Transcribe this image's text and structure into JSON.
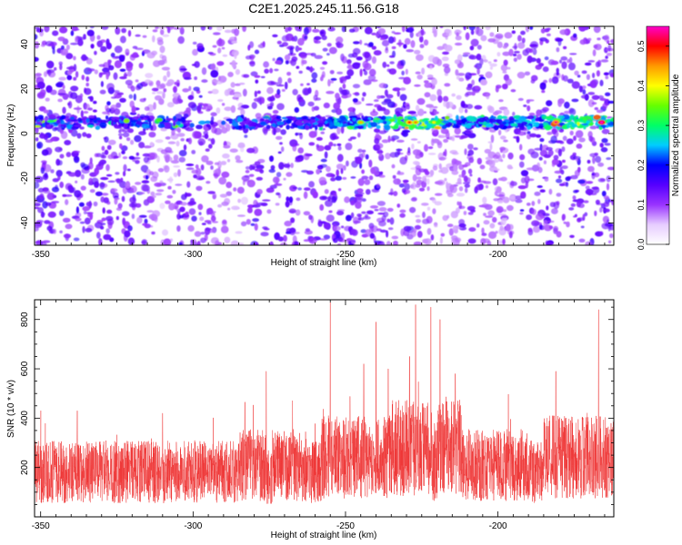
{
  "title": "C2E1.2025.245.11.56.G18",
  "chart_data": [
    {
      "type": "heatmap",
      "xlabel": "Height of straight line (km)",
      "ylabel": "Frequency (Hz)",
      "xlim": [
        -352,
        -162
      ],
      "ylim": [
        -50,
        48
      ],
      "xticks": [
        -350,
        -300,
        -250,
        -200
      ],
      "yticks": [
        -40,
        -20,
        0,
        20,
        40
      ],
      "band_frequency_hz": 5,
      "band_x_range": [
        -352,
        -162
      ],
      "colorbar": {
        "label": "Normalized spectral amplitude",
        "range": [
          0.0,
          0.55
        ],
        "ticks": [
          "0.0",
          "0.1",
          "0.2",
          "0.3",
          "0.4",
          "0.5"
        ],
        "colors": [
          "#ffffff",
          "#e6ccff",
          "#9933ff",
          "#5500ff",
          "#0000ff",
          "#00ccff",
          "#00ff66",
          "#66ff00",
          "#ffff00",
          "#ff9900",
          "#ff0000",
          "#ff00cc"
        ]
      }
    },
    {
      "type": "line",
      "xlabel": "Height of straight line (km)",
      "ylabel": "SNR (10 * v/v)",
      "xlim": [
        -352,
        -162
      ],
      "ylim": [
        0,
        880
      ],
      "xticks": [
        -350,
        -300,
        -250,
        -200
      ],
      "yticks": [
        200,
        400,
        600,
        800
      ],
      "color": "#ee3333",
      "baseline_snr": 170,
      "peaks": [
        {
          "x": -338,
          "y": 430
        },
        {
          "x": -310,
          "y": 420
        },
        {
          "x": -283,
          "y": 465
        },
        {
          "x": -276,
          "y": 590
        },
        {
          "x": -255,
          "y": 870
        },
        {
          "x": -244,
          "y": 620
        },
        {
          "x": -240,
          "y": 790
        },
        {
          "x": -236,
          "y": 600
        },
        {
          "x": -229,
          "y": 650
        },
        {
          "x": -227,
          "y": 860
        },
        {
          "x": -222,
          "y": 850
        },
        {
          "x": -219,
          "y": 800
        },
        {
          "x": -214,
          "y": 580
        },
        {
          "x": -181,
          "y": 590
        },
        {
          "x": -167,
          "y": 840
        }
      ]
    }
  ]
}
